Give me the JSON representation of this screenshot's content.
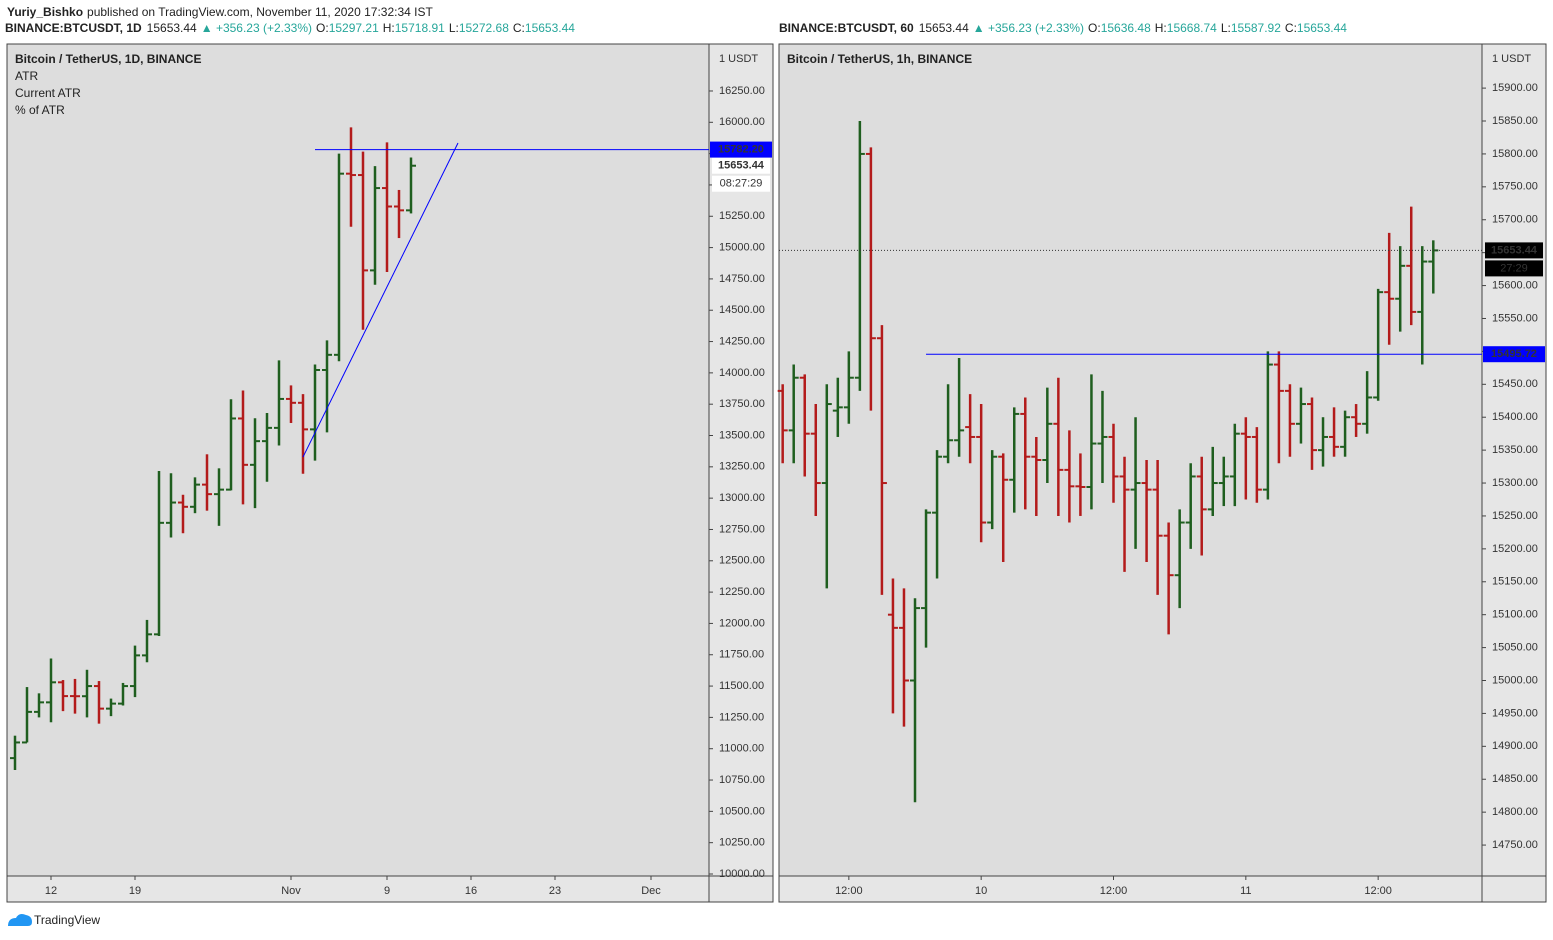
{
  "header": {
    "author": "Yuriy_Bishko",
    "published": "published on TradingView.com, November 11, 2020 17:32:34 IST"
  },
  "footer": "TradingView",
  "chart_data": [
    {
      "type": "ohlc",
      "symbol": "BINANCE:BTCUSDT, 1D",
      "last": "15653.44",
      "change": "▲ +356.23 (+2.33%)",
      "quote": [
        {
          "key": "O:",
          "value": "15297.21"
        },
        {
          "key": "H:",
          "value": "15718.91"
        },
        {
          "key": "L:",
          "value": "15272.68"
        },
        {
          "key": "C:",
          "value": "15653.44"
        }
      ],
      "title": "Bitcoin / TetherUS, 1D, BINANCE",
      "indicators": [
        "ATR",
        "Current ATR",
        "% of ATR"
      ],
      "axis_unit": "1 USDT",
      "up_color": "#1f5e1f",
      "down_color": "#b31b1b",
      "x": [
        "2020-10-09",
        "2020-10-10",
        "2020-10-11",
        "2020-10-12",
        "2020-10-13",
        "2020-10-14",
        "2020-10-15",
        "2020-10-16",
        "2020-10-17",
        "2020-10-18",
        "2020-10-19",
        "2020-10-20",
        "2020-10-21",
        "2020-10-22",
        "2020-10-23",
        "2020-10-24",
        "2020-10-25",
        "2020-10-26",
        "2020-10-27",
        "2020-10-28",
        "2020-10-29",
        "2020-10-30",
        "2020-10-31",
        "2020-11-01",
        "2020-11-02",
        "2020-11-03",
        "2020-11-04",
        "2020-11-05",
        "2020-11-06",
        "2020-11-07",
        "2020-11-08",
        "2020-11-09",
        "2020-11-10",
        "2020-11-11"
      ],
      "open": [
        10925,
        11050,
        11294,
        11370,
        11530,
        11420,
        11419,
        11500,
        11320,
        11360,
        11500,
        11745,
        11913,
        12803,
        12965,
        12931,
        13108,
        13032,
        13068,
        13636,
        13266,
        13455,
        13561,
        13792,
        13761,
        13549,
        14023,
        14144,
        15590,
        15579,
        14818,
        15475,
        15328,
        15297.21
      ],
      "high": [
        11104,
        11492,
        11442,
        11720,
        11548,
        11557,
        11630,
        11540,
        11400,
        11525,
        11823,
        12028,
        13217,
        13199,
        13027,
        13166,
        13350,
        13238,
        13789,
        13859,
        13638,
        13680,
        14100,
        13900,
        13830,
        14067,
        14259,
        15750,
        15960,
        15766,
        15650,
        15840,
        15460,
        15718.91
      ],
      "low": [
        10830,
        11050,
        11250,
        11211,
        11300,
        11280,
        11250,
        11200,
        11260,
        11345,
        11412,
        11690,
        11900,
        12686,
        12720,
        12880,
        12900,
        12779,
        13062,
        12950,
        12920,
        13131,
        13420,
        13600,
        13195,
        13300,
        13525,
        14093,
        15166,
        14344,
        14703,
        14805,
        15076,
        15272.68
      ],
      "close": [
        11050,
        11294,
        11370,
        11530,
        11420,
        11419,
        11500,
        11320,
        11360,
        11500,
        11745,
        11913,
        12803,
        12965,
        12931,
        13108,
        13032,
        13068,
        13636,
        13266,
        13455,
        13561,
        13792,
        13761,
        13549,
        14023,
        14144,
        15590,
        15579,
        14818,
        15475,
        15328,
        15297.21,
        15653.44
      ],
      "xlim": [
        "2020-10-08T08:00",
        "2020-12-05T20:00"
      ],
      "xticks": [
        {
          "value": "2020-10-12",
          "label": "12"
        },
        {
          "value": "2020-10-19",
          "label": "19"
        },
        {
          "value": "2020-11-01",
          "label": "Nov"
        },
        {
          "value": "2020-11-09",
          "label": "9"
        },
        {
          "value": "2020-11-16",
          "label": "16"
        },
        {
          "value": "2020-11-23",
          "label": "23"
        },
        {
          "value": "2020-12-01",
          "label": "Dec"
        }
      ],
      "ylim": [
        9984,
        16625
      ],
      "yticks": [
        {
          "value": 10000,
          "label": "10000.00"
        },
        {
          "value": 10250,
          "label": "10250.00"
        },
        {
          "value": 10500,
          "label": "10500.00"
        },
        {
          "value": 10750,
          "label": "10750.00"
        },
        {
          "value": 11000,
          "label": "11000.00"
        },
        {
          "value": 11250,
          "label": "11250.00"
        },
        {
          "value": 11500,
          "label": "11500.00"
        },
        {
          "value": 11750,
          "label": "11750.00"
        },
        {
          "value": 12000,
          "label": "12000.00"
        },
        {
          "value": 12250,
          "label": "12250.00"
        },
        {
          "value": 12500,
          "label": "12500.00"
        },
        {
          "value": 12750,
          "label": "12750.00"
        },
        {
          "value": 13000,
          "label": "13000.00"
        },
        {
          "value": 13250,
          "label": "13250.00"
        },
        {
          "value": 13500,
          "label": "13500.00"
        },
        {
          "value": 13750,
          "label": "13750.00"
        },
        {
          "value": 14000,
          "label": "14000.00"
        },
        {
          "value": 14250,
          "label": "14250.00"
        },
        {
          "value": 14500,
          "label": "14500.00"
        },
        {
          "value": 14750,
          "label": "14750.00"
        },
        {
          "value": 15000,
          "label": "15000.00"
        },
        {
          "value": 15250,
          "label": "15250.00"
        },
        {
          "value": 15500,
          "label": "15500.00"
        },
        {
          "value": 15750,
          "label": "15750.00"
        },
        {
          "value": 16000,
          "label": "16000.00"
        },
        {
          "value": 16250,
          "label": "16250.00"
        }
      ],
      "hlines": [
        {
          "value": 15782.2,
          "label": "15782.20",
          "from": "2020-11-03",
          "color": "#0000ff"
        }
      ],
      "trendline": {
        "x": [
          "2020-11-02",
          "2020-11-14T22:00"
        ],
        "y": [
          13328,
          15835
        ],
        "color": "#0000ff"
      },
      "last_price": {
        "value": 15653.44,
        "label": "15653.44",
        "countdown": "08:27:29",
        "background": "#ffffff",
        "text_color": "#000000",
        "line": false
      }
    },
    {
      "type": "ohlc",
      "symbol": "BINANCE:BTCUSDT, 60",
      "last": "15653.44",
      "change": "▲ +356.23 (+2.33%)",
      "quote": [
        {
          "key": "O:",
          "value": "15636.48"
        },
        {
          "key": "H:",
          "value": "15668.74"
        },
        {
          "key": "L:",
          "value": "15587.92"
        },
        {
          "key": "C:",
          "value": "15653.44"
        }
      ],
      "title": "Bitcoin / TetherUS, 1h, BINANCE",
      "axis_unit": "1 USDT",
      "up_color": "#1f5e1f",
      "down_color": "#b31b1b",
      "x": [
        "2020-11-09T06:00",
        "2020-11-09T07:00",
        "2020-11-09T08:00",
        "2020-11-09T09:00",
        "2020-11-09T10:00",
        "2020-11-09T11:00",
        "2020-11-09T12:00",
        "2020-11-09T13:00",
        "2020-11-09T14:00",
        "2020-11-09T15:00",
        "2020-11-09T16:00",
        "2020-11-09T17:00",
        "2020-11-09T18:00",
        "2020-11-09T19:00",
        "2020-11-09T20:00",
        "2020-11-09T21:00",
        "2020-11-09T22:00",
        "2020-11-09T23:00",
        "2020-11-10T00:00",
        "2020-11-10T01:00",
        "2020-11-10T02:00",
        "2020-11-10T03:00",
        "2020-11-10T04:00",
        "2020-11-10T05:00",
        "2020-11-10T06:00",
        "2020-11-10T07:00",
        "2020-11-10T08:00",
        "2020-11-10T09:00",
        "2020-11-10T10:00",
        "2020-11-10T11:00",
        "2020-11-10T12:00",
        "2020-11-10T13:00",
        "2020-11-10T14:00",
        "2020-11-10T15:00",
        "2020-11-10T16:00",
        "2020-11-10T17:00",
        "2020-11-10T18:00",
        "2020-11-10T19:00",
        "2020-11-10T20:00",
        "2020-11-10T21:00",
        "2020-11-10T22:00",
        "2020-11-10T23:00",
        "2020-11-11T00:00",
        "2020-11-11T01:00",
        "2020-11-11T02:00",
        "2020-11-11T03:00",
        "2020-11-11T04:00",
        "2020-11-11T05:00",
        "2020-11-11T06:00",
        "2020-11-11T07:00",
        "2020-11-11T08:00",
        "2020-11-11T09:00",
        "2020-11-11T10:00",
        "2020-11-11T11:00",
        "2020-11-11T12:00",
        "2020-11-11T13:00",
        "2020-11-11T14:00",
        "2020-11-11T15:00",
        "2020-11-11T16:00",
        "2020-11-11T17:00"
      ],
      "open": [
        15440,
        15380,
        15460,
        15375,
        15300,
        15410,
        15415,
        15460,
        15800,
        15520,
        15100,
        15080,
        15000,
        15110,
        15255,
        15340,
        15365,
        15385,
        15370,
        15240,
        15340,
        15305,
        15405,
        15340,
        15335,
        15390,
        15320,
        15295,
        15294,
        15360,
        15370,
        15310,
        15290,
        15300,
        15290,
        15220,
        15160,
        15240,
        15310,
        15260,
        15300,
        15310,
        15375,
        15370,
        15290,
        15480,
        15440,
        15390,
        15420,
        15350,
        15370,
        15355,
        15400,
        15390,
        15430,
        15590,
        15580,
        15630,
        15560,
        15636.48
      ],
      "high": [
        15450,
        15480,
        15465,
        15420,
        15450,
        15460,
        15500,
        15850,
        15810,
        15540,
        15155,
        15140,
        15125,
        15260,
        15350,
        15450,
        15490,
        15435,
        15420,
        15350,
        15345,
        15415,
        15430,
        15370,
        15445,
        15460,
        15380,
        15345,
        15465,
        15440,
        15390,
        15340,
        15400,
        15335,
        15335,
        15240,
        15260,
        15330,
        15340,
        15355,
        15340,
        15390,
        15400,
        15385,
        15500,
        15500,
        15450,
        15445,
        15430,
        15400,
        15415,
        15410,
        15420,
        15470,
        15595,
        15680,
        15660,
        15720,
        15660,
        15668.74
      ],
      "low": [
        15330,
        15330,
        15310,
        15250,
        15140,
        15370,
        15390,
        15440,
        15410,
        15130,
        14950,
        14930,
        14815,
        15050,
        15155,
        15330,
        15340,
        15330,
        15210,
        15230,
        15180,
        15255,
        15260,
        15250,
        15300,
        15250,
        15240,
        15250,
        15260,
        15300,
        15270,
        15165,
        15200,
        15180,
        15130,
        15070,
        15110,
        15200,
        15190,
        15250,
        15265,
        15265,
        15275,
        15270,
        15275,
        15330,
        15340,
        15360,
        15320,
        15325,
        15340,
        15340,
        15370,
        15375,
        15425,
        15510,
        15530,
        15540,
        15480,
        15587.92
      ],
      "close": [
        15380,
        15460,
        15375,
        15300,
        15420,
        15415,
        15460,
        15800,
        15520,
        15300,
        15080,
        15000,
        15110,
        15255,
        15340,
        15365,
        15380,
        15370,
        15240,
        15340,
        15305,
        15405,
        15340,
        15335,
        15390,
        15320,
        15295,
        15294,
        15360,
        15370,
        15310,
        15290,
        15300,
        15290,
        15220,
        15160,
        15240,
        15310,
        15260,
        15300,
        15310,
        15375,
        15370,
        15290,
        15480,
        15440,
        15390,
        15420,
        15350,
        15370,
        15355,
        15400,
        15390,
        15430,
        15590,
        15580,
        15630,
        15560,
        15636.48,
        15653.44
      ],
      "xlim": [
        "2020-11-09T05:40",
        "2020-11-11T21:25"
      ],
      "xticks": [
        {
          "value": "2020-11-09T12:00",
          "label": "12:00"
        },
        {
          "value": "2020-11-10T00:00",
          "label": "10"
        },
        {
          "value": "2020-11-10T12:00",
          "label": "12:00"
        },
        {
          "value": "2020-11-11T00:00",
          "label": "11"
        },
        {
          "value": "2020-11-11T12:00",
          "label": "12:00"
        }
      ],
      "ylim": [
        14703,
        15967
      ],
      "yticks": [
        {
          "value": 14750,
          "label": "14750.00"
        },
        {
          "value": 14800,
          "label": "14800.00"
        },
        {
          "value": 14850,
          "label": "14850.00"
        },
        {
          "value": 14900,
          "label": "14900.00"
        },
        {
          "value": 14950,
          "label": "14950.00"
        },
        {
          "value": 15000,
          "label": "15000.00"
        },
        {
          "value": 15050,
          "label": "15050.00"
        },
        {
          "value": 15100,
          "label": "15100.00"
        },
        {
          "value": 15150,
          "label": "15150.00"
        },
        {
          "value": 15200,
          "label": "15200.00"
        },
        {
          "value": 15250,
          "label": "15250.00"
        },
        {
          "value": 15300,
          "label": "15300.00"
        },
        {
          "value": 15350,
          "label": "15350.00"
        },
        {
          "value": 15400,
          "label": "15400.00"
        },
        {
          "value": 15450,
          "label": "15450.00"
        },
        {
          "value": 15500,
          "label": "15500.00"
        },
        {
          "value": 15550,
          "label": "15550.00"
        },
        {
          "value": 15600,
          "label": "15600.00"
        },
        {
          "value": 15650,
          "label": "15650.00"
        },
        {
          "value": 15700,
          "label": "15700.00"
        },
        {
          "value": 15750,
          "label": "15750.00"
        },
        {
          "value": 15800,
          "label": "15800.00"
        },
        {
          "value": 15850,
          "label": "15850.00"
        },
        {
          "value": 15900,
          "label": "15900.00"
        }
      ],
      "hlines": [
        {
          "value": 15495.72,
          "label": "15495.72",
          "from": "2020-11-09T19:00",
          "color": "#0000ff"
        }
      ],
      "last_price": {
        "value": 15653.44,
        "label": "15653.44",
        "countdown": "27:29",
        "background": "#000000",
        "text_color": "#ffffff",
        "line": true
      }
    }
  ]
}
